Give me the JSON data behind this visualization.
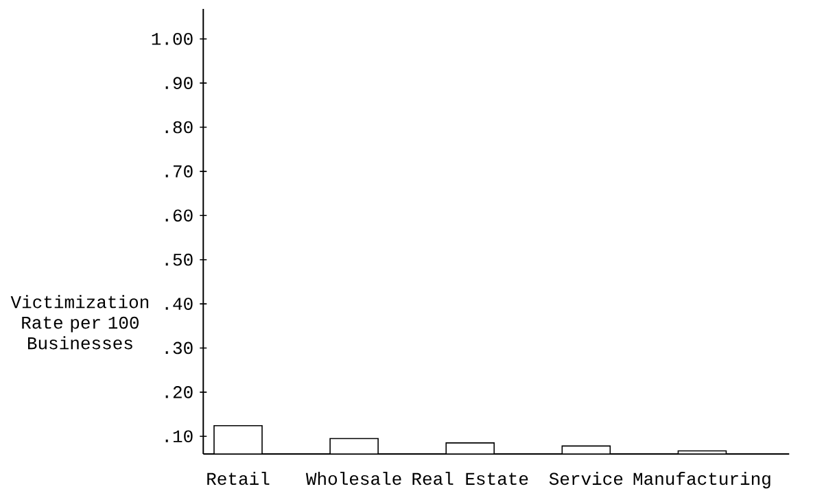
{
  "chart_data": {
    "type": "bar",
    "ylabel": "Victimization Rate per 100 Businesses",
    "categories": [
      "Retail",
      "Wholesale",
      "Real Estate",
      "Service",
      "Manufacturing"
    ],
    "values": [
      0.124,
      0.095,
      0.085,
      0.078,
      0.067
    ],
    "color": "#ffffff",
    "ylim": [
      0.06,
      1.068
    ],
    "yticks": [
      {
        "value": 0.1,
        "label": ".10"
      },
      {
        "value": 0.2,
        "label": ".20"
      },
      {
        "value": 0.3,
        "label": ".30"
      },
      {
        "value": 0.4,
        "label": ".40"
      },
      {
        "value": 0.5,
        "label": ".50"
      },
      {
        "value": 0.6,
        "label": ".60"
      },
      {
        "value": 0.7,
        "label": ".70"
      },
      {
        "value": 0.8,
        "label": ".80"
      },
      {
        "value": 0.9,
        "label": ".90"
      },
      {
        "value": 1,
        "label": "1.00"
      }
    ],
    "grid": false
  }
}
